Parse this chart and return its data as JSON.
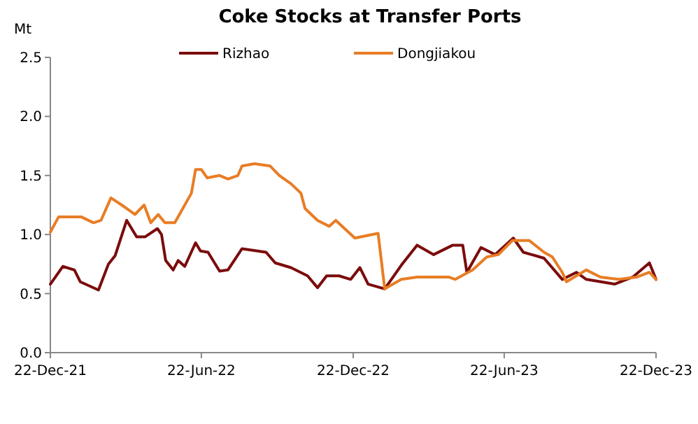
{
  "chart_data": {
    "type": "line",
    "title": "Coke Stocks at Transfer Ports",
    "ylabel": "Mt",
    "legend": "top",
    "grid": false,
    "xlim": [
      "2021-12-22",
      "2023-12-22"
    ],
    "xticks": [
      {
        "value": "2021-12-22",
        "label": "22-Dec-21"
      },
      {
        "value": "2022-06-22",
        "label": "22-Jun-22"
      },
      {
        "value": "2022-12-22",
        "label": "22-Dec-22"
      },
      {
        "value": "2023-06-22",
        "label": "22-Jun-23"
      },
      {
        "value": "2023-12-22",
        "label": "22-Dec-23"
      }
    ],
    "ylim": [
      0,
      2.5
    ],
    "yticks": [
      {
        "value": 0,
        "label": "0.0"
      },
      {
        "value": 0.5,
        "label": "0.5"
      },
      {
        "value": 1,
        "label": "1.0"
      },
      {
        "value": 1.5,
        "label": "1.5"
      },
      {
        "value": 2,
        "label": "2.0"
      },
      {
        "value": 2.5,
        "label": "2.5"
      }
    ],
    "series": [
      {
        "name": "Rizhao",
        "color": "#7b0c0c",
        "x": [
          "2021-12-22",
          "2022-01-06",
          "2022-01-20",
          "2022-01-27",
          "2022-02-18",
          "2022-03-02",
          "2022-03-10",
          "2022-03-24",
          "2022-04-05",
          "2022-04-15",
          "2022-04-30",
          "2022-05-05",
          "2022-05-10",
          "2022-05-19",
          "2022-05-25",
          "2022-06-02",
          "2022-06-15",
          "2022-06-21",
          "2022-06-30",
          "2022-07-14",
          "2022-07-24",
          "2022-08-10",
          "2022-09-08",
          "2022-09-19",
          "2022-10-08",
          "2022-10-28",
          "2022-11-09",
          "2022-11-20",
          "2022-12-05",
          "2022-12-19",
          "2022-12-30",
          "2023-01-09",
          "2023-01-29",
          "2023-02-18",
          "2023-03-09",
          "2023-03-29",
          "2023-04-21",
          "2023-05-03",
          "2023-05-08",
          "2023-05-25",
          "2023-06-11",
          "2023-07-03",
          "2023-07-15",
          "2023-08-09",
          "2023-08-31",
          "2023-09-17",
          "2023-09-29",
          "2023-11-02",
          "2023-11-24",
          "2023-12-14",
          "2023-12-22"
        ],
        "values": [
          0.58,
          0.73,
          0.7,
          0.6,
          0.53,
          0.75,
          0.82,
          1.12,
          0.98,
          0.98,
          1.05,
          1.0,
          0.78,
          0.7,
          0.78,
          0.73,
          0.93,
          0.86,
          0.85,
          0.69,
          0.7,
          0.88,
          0.85,
          0.76,
          0.72,
          0.65,
          0.55,
          0.65,
          0.65,
          0.62,
          0.72,
          0.58,
          0.54,
          0.74,
          0.91,
          0.83,
          0.91,
          0.91,
          0.68,
          0.89,
          0.83,
          0.97,
          0.85,
          0.8,
          0.62,
          0.68,
          0.62,
          0.58,
          0.64,
          0.76,
          0.62
        ]
      },
      {
        "name": "Dongjiakou",
        "color": "#e87d25",
        "x": [
          "2021-12-22",
          "2022-01-01",
          "2022-01-28",
          "2022-02-12",
          "2022-02-21",
          "2022-03-05",
          "2022-03-18",
          "2022-03-28",
          "2022-04-03",
          "2022-04-14",
          "2022-04-22",
          "2022-05-01",
          "2022-05-09",
          "2022-05-21",
          "2022-06-10",
          "2022-06-15",
          "2022-06-22",
          "2022-06-29",
          "2022-07-14",
          "2022-07-24",
          "2022-08-05",
          "2022-08-10",
          "2022-08-25",
          "2022-09-13",
          "2022-09-24",
          "2022-10-08",
          "2022-10-20",
          "2022-10-25",
          "2022-11-09",
          "2022-11-23",
          "2022-12-01",
          "2022-12-24",
          "2023-01-21",
          "2023-01-29",
          "2023-02-18",
          "2023-03-09",
          "2023-04-16",
          "2023-04-24",
          "2023-05-15",
          "2023-06-01",
          "2023-06-15",
          "2023-07-02",
          "2023-07-22",
          "2023-08-09",
          "2023-08-19",
          "2023-08-31",
          "2023-09-05",
          "2023-09-29",
          "2023-10-16",
          "2023-11-07",
          "2023-11-29",
          "2023-12-14",
          "2023-12-22"
        ],
        "values": [
          1.02,
          1.15,
          1.15,
          1.1,
          1.12,
          1.31,
          1.25,
          1.2,
          1.17,
          1.25,
          1.1,
          1.17,
          1.1,
          1.1,
          1.35,
          1.55,
          1.55,
          1.48,
          1.5,
          1.47,
          1.5,
          1.58,
          1.6,
          1.58,
          1.5,
          1.43,
          1.35,
          1.22,
          1.12,
          1.07,
          1.12,
          0.97,
          1.01,
          0.54,
          0.62,
          0.64,
          0.64,
          0.62,
          0.7,
          0.81,
          0.83,
          0.95,
          0.95,
          0.85,
          0.81,
          0.68,
          0.6,
          0.7,
          0.64,
          0.62,
          0.64,
          0.68,
          0.62
        ]
      }
    ]
  }
}
